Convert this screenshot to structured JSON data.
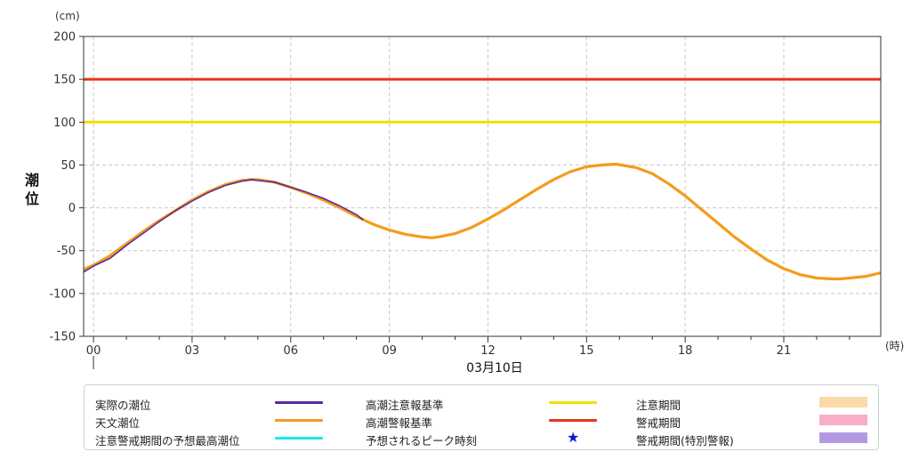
{
  "chart_data": {
    "type": "line",
    "ylabel": "潮位",
    "yunit": "(cm)",
    "xunit": "(時)",
    "date_label": "03月10日",
    "ylim": [
      -150,
      200
    ],
    "yticks": [
      -150,
      -100,
      -50,
      0,
      50,
      100,
      150,
      200
    ],
    "xlim": [
      -0.3,
      23.95
    ],
    "xticks": [
      0,
      3,
      6,
      9,
      12,
      15,
      18,
      21
    ],
    "xticklabels": [
      "00",
      "03",
      "06",
      "09",
      "12",
      "15",
      "18",
      "21"
    ],
    "grid": true,
    "series": [
      {
        "name": "実際の潮位",
        "color": "#5b2a9e",
        "x": [
          -0.3,
          0,
          0.5,
          1,
          1.5,
          2,
          2.5,
          3,
          3.5,
          4,
          4.5,
          4.8,
          5,
          5.5,
          6,
          6.5,
          7,
          7.5,
          8,
          8.2
        ],
        "y": [
          -75,
          -68,
          -59,
          -44,
          -30,
          -16,
          -3,
          8,
          18,
          26,
          31,
          33,
          32,
          30,
          24,
          18,
          11,
          2,
          -8,
          -14
        ]
      },
      {
        "name": "天文潮位",
        "color": "#f39c1c",
        "x": [
          -0.3,
          0,
          0.5,
          1,
          1.5,
          2,
          2.5,
          3,
          3.5,
          4,
          4.5,
          4.8,
          5,
          5.5,
          6,
          6.5,
          7,
          7.5,
          8,
          8.5,
          9,
          9.5,
          10,
          10.3,
          10.5,
          11,
          11.5,
          12,
          12.5,
          13,
          13.5,
          14,
          14.5,
          15,
          15.5,
          15.9,
          16.5,
          17,
          17.5,
          18,
          18.5,
          19,
          19.5,
          20,
          20.5,
          21,
          21.5,
          22,
          22.5,
          22.7,
          23,
          23.5,
          23.95
        ],
        "y": [
          -72,
          -67,
          -56,
          -42,
          -28,
          -15,
          -3,
          9,
          19,
          27,
          32,
          33,
          33,
          30,
          24,
          17,
          9,
          0,
          -10,
          -19,
          -26,
          -31,
          -34,
          -35,
          -34,
          -30,
          -23,
          -13,
          -2,
          10,
          22,
          33,
          42,
          48,
          50,
          51,
          47,
          40,
          28,
          14,
          -2,
          -18,
          -34,
          -48,
          -61,
          -71,
          -78,
          -82,
          -83,
          -83,
          -82,
          -80,
          -76
        ]
      }
    ],
    "reference_lines": [
      {
        "name": "高潮注意報基準",
        "value": 100,
        "color": "#f0e000"
      },
      {
        "name": "高潮警報基準",
        "value": 150,
        "color": "#e8341a"
      }
    ]
  },
  "legend": {
    "items": [
      {
        "label": "実際の潮位",
        "kind": "line",
        "color": "#5b2a9e"
      },
      {
        "label": "天文潮位",
        "kind": "line",
        "color": "#f39c1c"
      },
      {
        "label": "注意警戒期間の予想最高潮位",
        "kind": "line",
        "color": "#1ee6f0"
      },
      {
        "label": "高潮注意報基準",
        "kind": "line",
        "color": "#f0e000"
      },
      {
        "label": "高潮警報基準",
        "kind": "line",
        "color": "#e8341a"
      },
      {
        "label": "予想されるピーク時刻",
        "kind": "star",
        "color": "#0a1acc",
        "symbol": "★"
      },
      {
        "label": "注意期間",
        "kind": "box",
        "color": "#fbd9a8"
      },
      {
        "label": "警戒期間",
        "kind": "box",
        "color": "#f8aec6"
      },
      {
        "label": "警戒期間(特別警報)",
        "kind": "box",
        "color": "#b39ae0"
      }
    ]
  }
}
